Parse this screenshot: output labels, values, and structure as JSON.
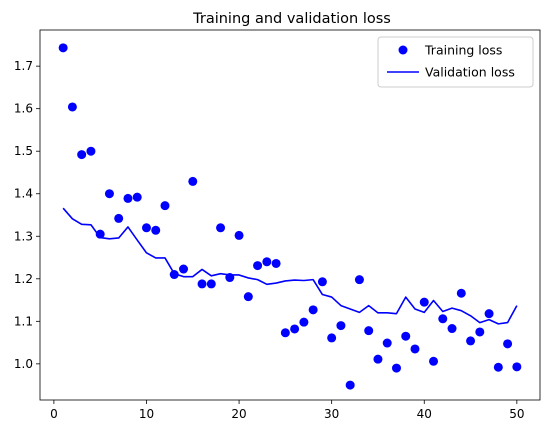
{
  "chart_data": {
    "type": "scatter",
    "title": "Training and validation loss",
    "xlabel": "",
    "ylabel": "",
    "xlim": [
      -1.5,
      52.5
    ],
    "ylim": [
      0.915,
      1.785
    ],
    "xticks": [
      0,
      10,
      20,
      30,
      40,
      50
    ],
    "yticks": [
      1.0,
      1.1,
      1.2,
      1.3,
      1.4,
      1.5,
      1.6,
      1.7
    ],
    "grid": false,
    "legend_position": "top-right",
    "series": [
      {
        "name": "Training loss",
        "type": "scatter",
        "color": "#0000ff",
        "x": [
          1,
          2,
          3,
          4,
          5,
          6,
          7,
          8,
          9,
          10,
          11,
          12,
          13,
          14,
          15,
          16,
          17,
          18,
          19,
          20,
          21,
          22,
          23,
          24,
          25,
          26,
          27,
          28,
          29,
          30,
          31,
          32,
          33,
          34,
          35,
          36,
          37,
          38,
          39,
          40,
          41,
          42,
          43,
          44,
          45,
          46,
          47,
          48,
          49,
          50
        ],
        "values": [
          1.743,
          1.604,
          1.492,
          1.5,
          1.305,
          1.4,
          1.342,
          1.389,
          1.392,
          1.32,
          1.314,
          1.372,
          1.21,
          1.223,
          1.429,
          1.188,
          1.188,
          1.32,
          1.203,
          1.302,
          1.158,
          1.231,
          1.24,
          1.236,
          1.073,
          1.082,
          1.098,
          1.127,
          1.193,
          1.061,
          1.09,
          0.95,
          1.198,
          1.078,
          1.011,
          1.049,
          0.99,
          1.065,
          1.035,
          1.145,
          1.006,
          1.106,
          1.083,
          1.166,
          1.054,
          1.075,
          1.118,
          0.992,
          1.047,
          0.993
        ]
      },
      {
        "name": "Validation loss",
        "type": "line",
        "color": "#0000ff",
        "x": [
          1,
          2,
          3,
          4,
          5,
          6,
          7,
          8,
          9,
          10,
          11,
          12,
          13,
          14,
          15,
          16,
          17,
          18,
          19,
          20,
          21,
          22,
          23,
          24,
          25,
          26,
          27,
          28,
          29,
          30,
          31,
          32,
          33,
          34,
          35,
          36,
          37,
          38,
          39,
          40,
          41,
          42,
          43,
          44,
          45,
          46,
          47,
          48,
          49,
          50
        ],
        "values": [
          1.366,
          1.341,
          1.328,
          1.327,
          1.297,
          1.294,
          1.296,
          1.322,
          1.291,
          1.261,
          1.249,
          1.249,
          1.212,
          1.205,
          1.205,
          1.222,
          1.207,
          1.212,
          1.209,
          1.209,
          1.202,
          1.198,
          1.187,
          1.19,
          1.195,
          1.197,
          1.196,
          1.198,
          1.163,
          1.157,
          1.137,
          1.129,
          1.121,
          1.137,
          1.12,
          1.12,
          1.118,
          1.157,
          1.129,
          1.121,
          1.149,
          1.123,
          1.131,
          1.125,
          1.113,
          1.097,
          1.104,
          1.094,
          1.097,
          1.137
        ]
      }
    ]
  }
}
